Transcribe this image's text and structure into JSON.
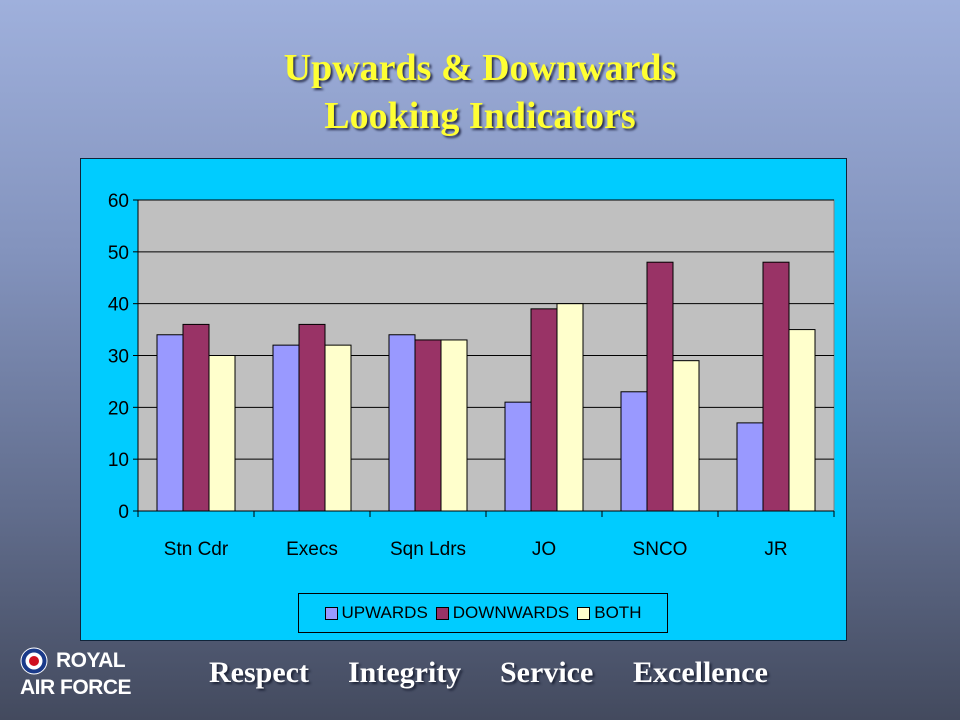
{
  "slide": {
    "title_line1": "Upwards & Downwards",
    "title_line2": "Looking Indicators"
  },
  "colors": {
    "title": "#ffff33",
    "chart_bg": "#00ccff",
    "plot_bg": "#c0c0c0",
    "upwards": "#9999ff",
    "downwards": "#993366",
    "both": "#ffffcc"
  },
  "chart_data": {
    "type": "bar",
    "categories": [
      "Stn Cdr",
      "Execs",
      "Sqn Ldrs",
      "JO",
      "SNCO",
      "JR"
    ],
    "series": [
      {
        "name": "UPWARDS",
        "values": [
          34,
          32,
          34,
          21,
          23,
          17
        ]
      },
      {
        "name": "DOWNWARDS",
        "values": [
          36,
          36,
          33,
          39,
          48,
          48
        ]
      },
      {
        "name": "BOTH",
        "values": [
          30,
          32,
          33,
          40,
          29,
          35
        ]
      }
    ],
    "ylim": [
      0,
      60
    ],
    "yticks": [
      "0",
      "10",
      "20",
      "30",
      "40",
      "50",
      "60"
    ],
    "grid": true,
    "legend_position": "bottom"
  },
  "footer": {
    "logo_line1": "ROYAL",
    "logo_line2": "AIR FORCE",
    "values": [
      "Respect",
      "Integrity",
      "Service",
      "Excellence"
    ]
  }
}
